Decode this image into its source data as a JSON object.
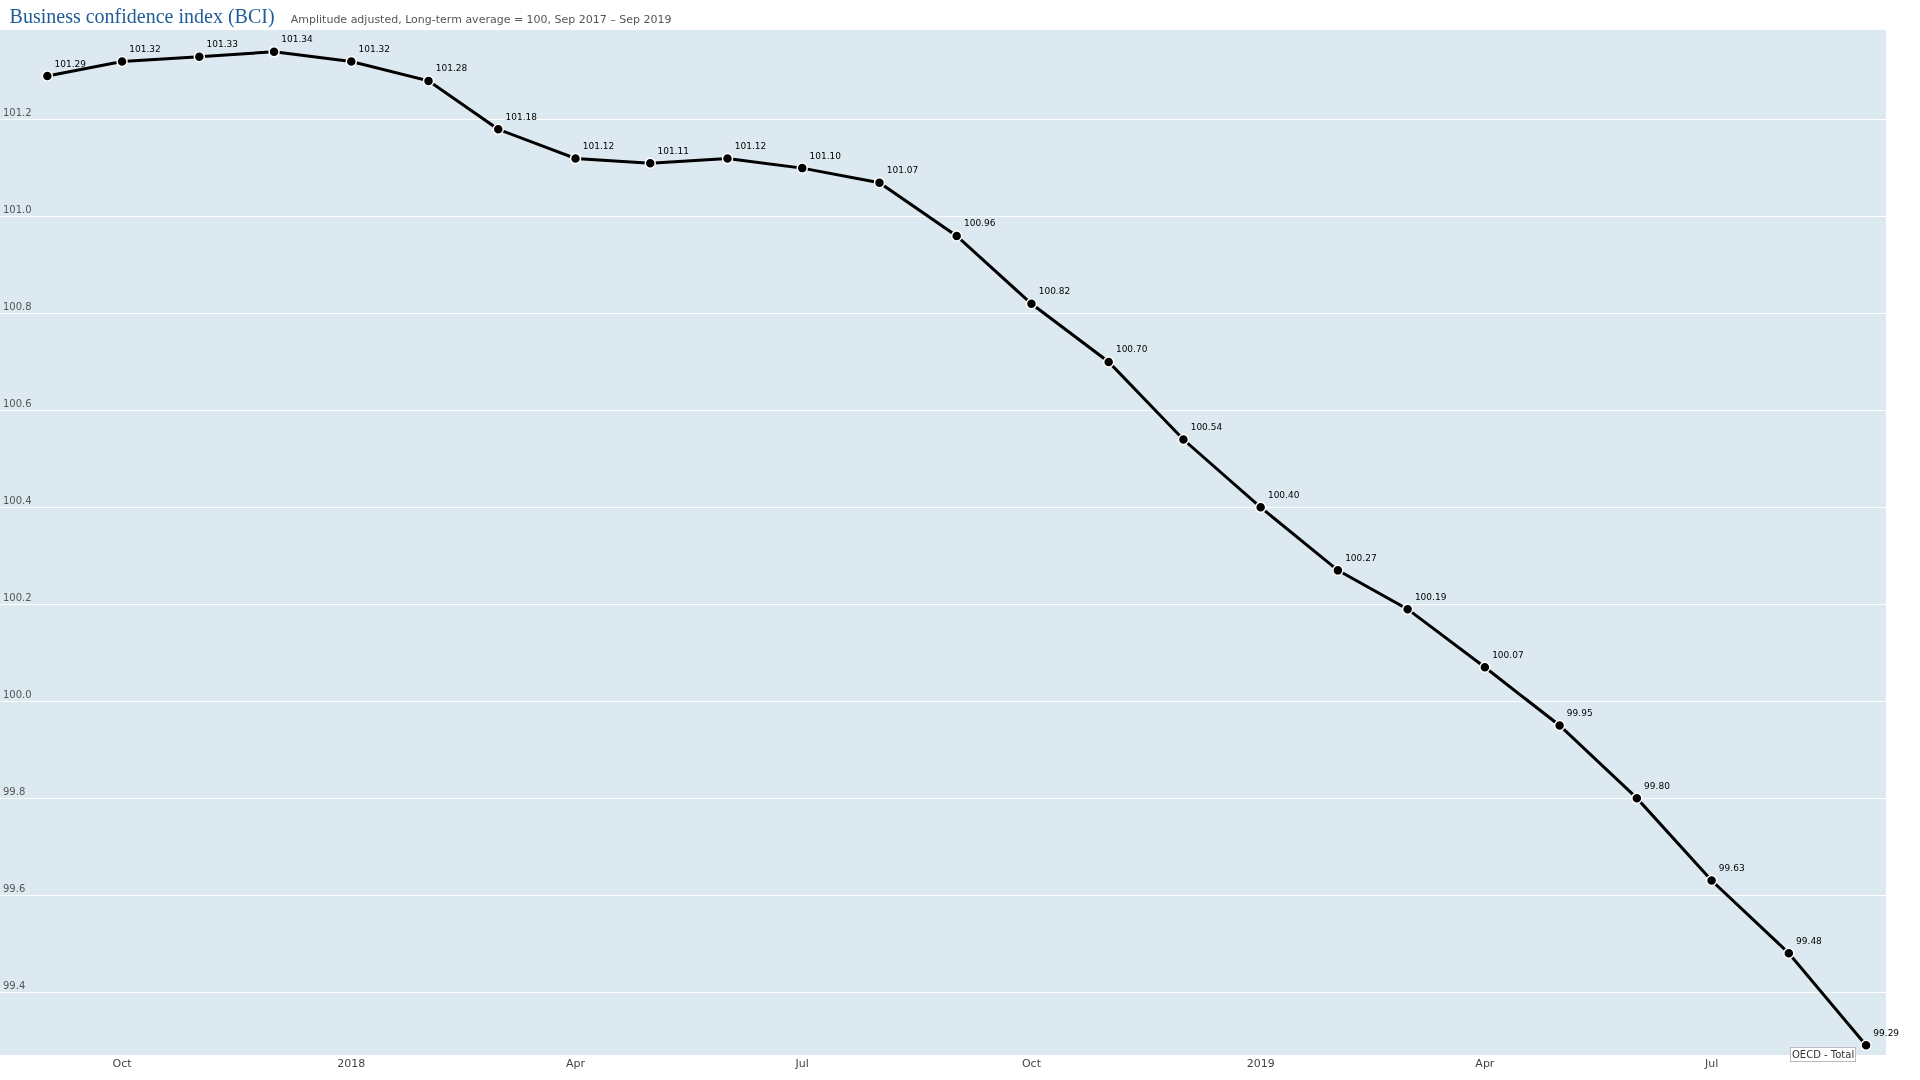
{
  "chart_data": {
    "type": "line",
    "title": "Business confidence index (BCI)",
    "subtitle": "Amplitude adjusted, Long-term average = 100, Sep 2017 – Sep 2019",
    "x": [
      "2017-09",
      "2017-10",
      "2017-11",
      "2017-12",
      "2018-01",
      "2018-02",
      "2018-03",
      "2018-04",
      "2018-05",
      "2018-06",
      "2018-07",
      "2018-08",
      "2018-09",
      "2018-10",
      "2018-11",
      "2018-12",
      "2019-01",
      "2019-02",
      "2019-03",
      "2019-04",
      "2019-05",
      "2019-06",
      "2019-07",
      "2019-08",
      "2019-09"
    ],
    "series": [
      {
        "name": "OECD - Total",
        "color": "#000000",
        "values": [
          101.29,
          101.32,
          101.33,
          101.34,
          101.32,
          101.28,
          101.18,
          101.12,
          101.11,
          101.12,
          101.1,
          101.07,
          100.96,
          100.82,
          100.7,
          100.54,
          100.4,
          100.27,
          100.19,
          100.07,
          99.95,
          99.8,
          99.63,
          99.48,
          99.29
        ],
        "value_labels": [
          "101.29",
          "101.32",
          "101.33",
          "101.34",
          "101.32",
          "101.28",
          "101.18",
          "101.12",
          "101.11",
          "101.12",
          "101.10",
          "101.07",
          "100.96",
          "100.82",
          "100.70",
          "100.54",
          "100.40",
          "100.27",
          "100.19",
          "100.07",
          "99.95",
          "99.80",
          "99.63",
          "99.48",
          "99.29"
        ]
      }
    ],
    "xlim": [
      "2017-08-13",
      "2019-09-09"
    ],
    "xticks": [
      {
        "value": "2017-10",
        "label": "Oct"
      },
      {
        "value": "2018-01",
        "label": "2018"
      },
      {
        "value": "2018-04",
        "label": "Apr"
      },
      {
        "value": "2018-07",
        "label": "Jul"
      },
      {
        "value": "2018-10",
        "label": "Oct"
      },
      {
        "value": "2019-01",
        "label": "2019"
      },
      {
        "value": "2019-04",
        "label": "Apr"
      },
      {
        "value": "2019-07",
        "label": "Jul"
      }
    ],
    "ylim": [
      99.27,
      101.385
    ],
    "yticks": [
      {
        "value": 99.4,
        "label": "99.4"
      },
      {
        "value": 99.6,
        "label": "99.6"
      },
      {
        "value": 99.8,
        "label": "99.8"
      },
      {
        "value": 100.0,
        "label": "100.0"
      },
      {
        "value": 100.2,
        "label": "100.2"
      },
      {
        "value": 100.4,
        "label": "100.4"
      },
      {
        "value": 100.6,
        "label": "100.6"
      },
      {
        "value": 100.8,
        "label": "100.8"
      },
      {
        "value": 101.0,
        "label": "101.0"
      },
      {
        "value": 101.2,
        "label": "101.2"
      }
    ],
    "grid": "y",
    "marker": "circle",
    "line_style": "solid",
    "legend": false
  }
}
